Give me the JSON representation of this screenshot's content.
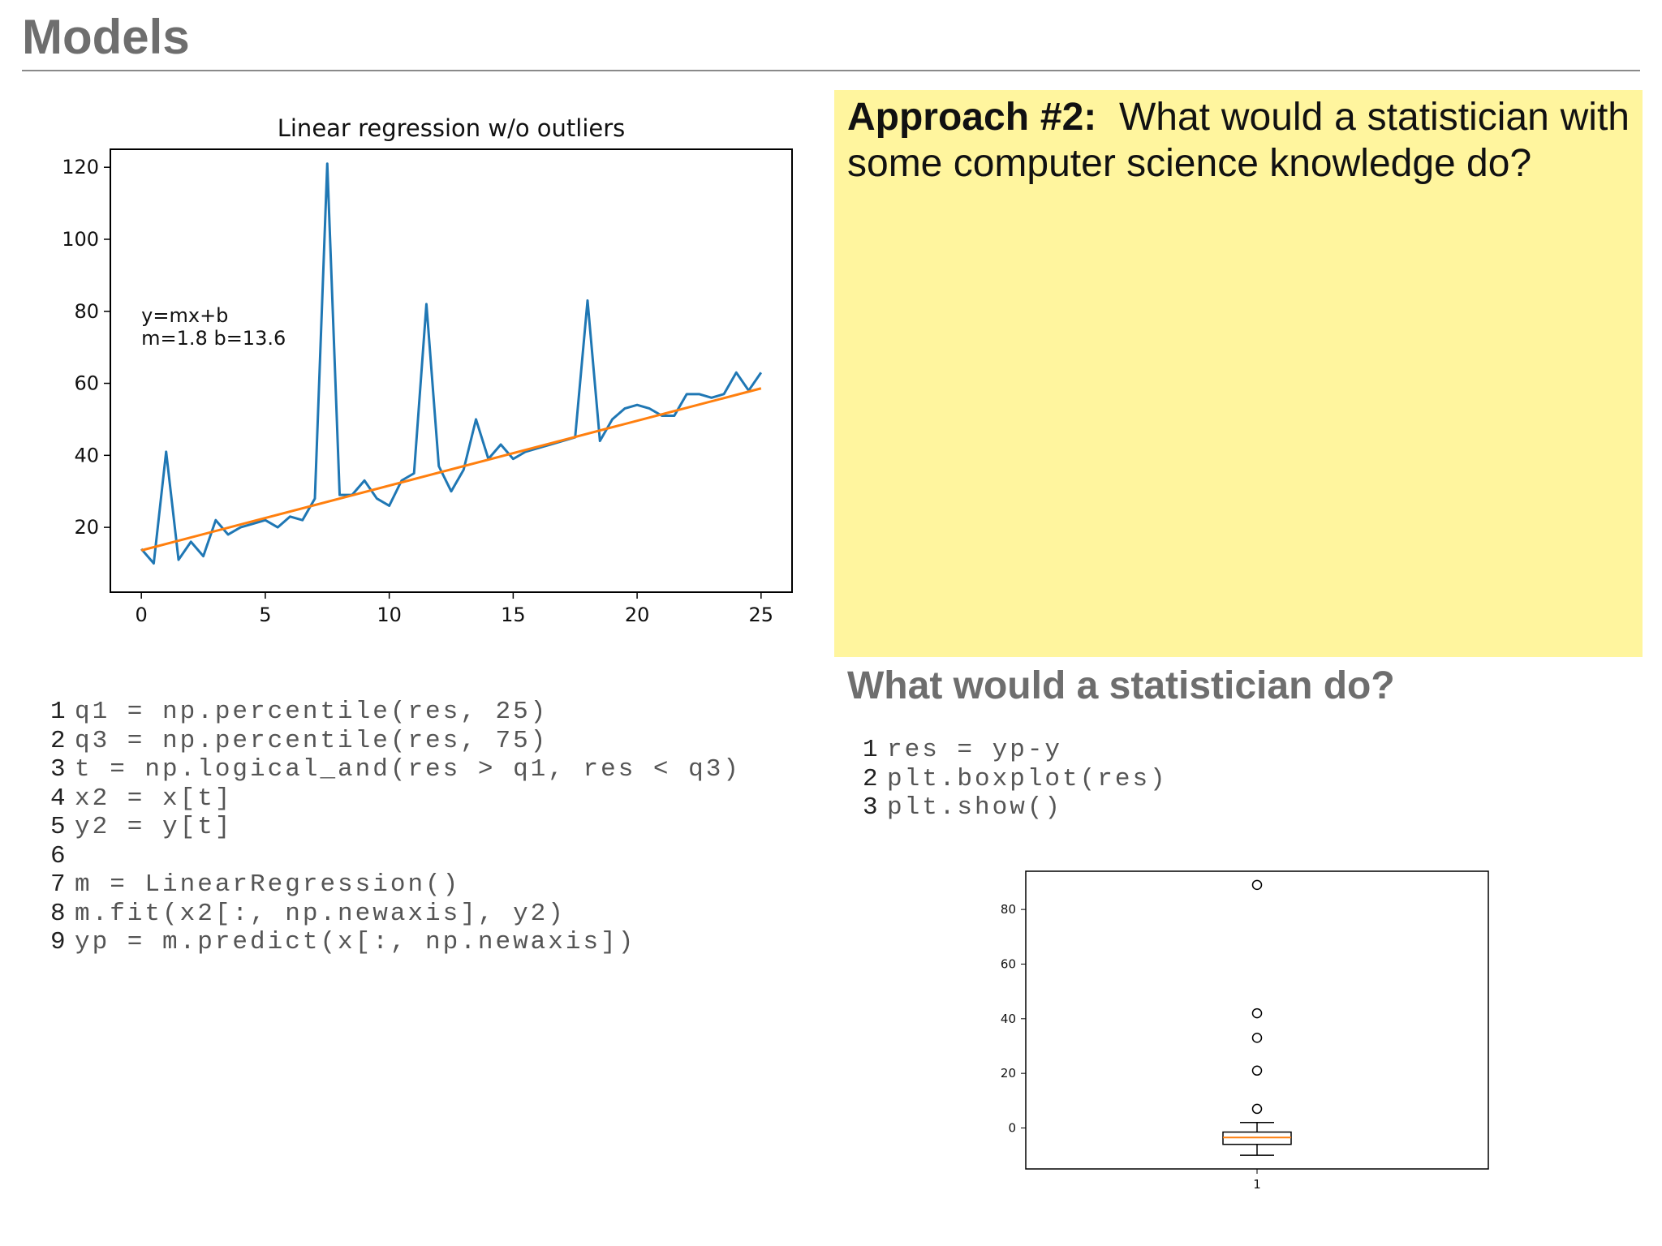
{
  "page": {
    "title": "Models"
  },
  "approach": {
    "label": "Approach #2:",
    "text": "What would a statistician with some computer science knowledge do?",
    "background": "#fff59e"
  },
  "statistician": {
    "heading": "What would a statistician do?"
  },
  "code_left": [
    {
      "n": "1",
      "text": "q1 = np.percentile(res, 25)"
    },
    {
      "n": "2",
      "text": "q3 = np.percentile(res, 75)"
    },
    {
      "n": "3",
      "text": "t = np.logical_and(res > q1, res < q3)"
    },
    {
      "n": "4",
      "text": "x2 = x[t]"
    },
    {
      "n": "5",
      "text": "y2 = y[t]"
    },
    {
      "n": "6",
      "text": ""
    },
    {
      "n": "7",
      "text": "m = LinearRegression()"
    },
    {
      "n": "8",
      "text": "m.fit(x2[:, np.newaxis], y2)"
    },
    {
      "n": "9",
      "text": "yp = m.predict(x[:, np.newaxis])"
    }
  ],
  "code_right": [
    {
      "n": "1",
      "text": "res = yp-y"
    },
    {
      "n": "2",
      "text": "plt.boxplot(res)"
    },
    {
      "n": "3",
      "text": "plt.show()"
    }
  ],
  "chart_data": [
    {
      "type": "line",
      "title": "Linear regression w/o outliers",
      "xlabel": "",
      "ylabel": "",
      "xlim": [
        -1.25,
        26.25
      ],
      "ylim": [
        2,
        125
      ],
      "xticks": [
        0,
        5,
        10,
        15,
        20,
        25
      ],
      "yticks": [
        20,
        40,
        60,
        80,
        100,
        120
      ],
      "annotation": [
        "y=mx+b",
        "m=1.8 b=13.6"
      ],
      "grid": false,
      "series": [
        {
          "color": "#1f77b4",
          "x": [
            0,
            0.5,
            1,
            1.5,
            2,
            2.5,
            3,
            3.5,
            4,
            4.5,
            5,
            5.5,
            6,
            6.5,
            7,
            7.5,
            8,
            8.5,
            9,
            9.5,
            10,
            10.5,
            11,
            11.5,
            12,
            12.5,
            13,
            13.5,
            14,
            14.5,
            15,
            15.5,
            16,
            16.5,
            17,
            17.5,
            18,
            18.5,
            19,
            19.5,
            20,
            20.5,
            21,
            21.5,
            22,
            22.5,
            23,
            23.5,
            24,
            24.5,
            25
          ],
          "y": [
            14,
            10,
            41,
            11,
            16,
            12,
            22,
            18,
            20,
            21,
            22,
            20,
            23,
            22,
            28,
            121,
            29,
            29,
            33,
            28,
            26,
            33,
            35,
            82,
            37,
            30,
            36,
            50,
            39,
            43,
            39,
            41,
            42,
            43,
            44,
            45,
            83,
            44,
            50,
            53,
            54,
            53,
            51,
            51,
            57,
            57,
            56,
            57,
            63,
            58,
            63
          ]
        },
        {
          "color": "#ff7f0e",
          "x": [
            0,
            25
          ],
          "y": [
            13.6,
            58.6
          ]
        }
      ]
    },
    {
      "type": "boxplot",
      "xticks": [
        "1"
      ],
      "yticks": [
        0,
        20,
        40,
        60,
        80
      ],
      "ylim": [
        -15,
        94
      ],
      "whisker_low": -10,
      "q1": -6,
      "median": -3.5,
      "q3": -1.5,
      "whisker_high": 2,
      "outliers": [
        7,
        21,
        33,
        42,
        89
      ],
      "box_color": "#000000",
      "median_color": "#ff7f0e"
    }
  ]
}
